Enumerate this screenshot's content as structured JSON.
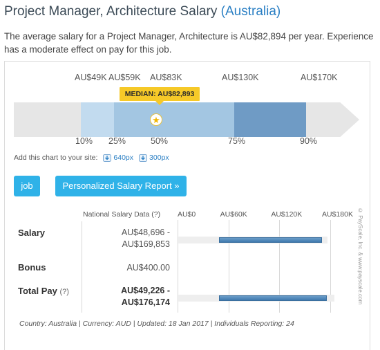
{
  "header": {
    "title_main": "Project Manager, Architecture Salary",
    "title_country": "(Australia)"
  },
  "description": "The average salary for a Project Manager, Architecture is AU$82,894 per year. Experience has a moderate effect on pay for this job.",
  "range_chart": {
    "top_labels": [
      "AU$49K",
      "AU$59K",
      "AU$83K",
      "AU$130K",
      "AU$170K"
    ],
    "bottom_labels": [
      "10%",
      "25%",
      "50%",
      "75%",
      "90%"
    ],
    "median_label": "MEDIAN: AU$82,893",
    "colors": {
      "track": "#e6e6e6",
      "band_10_25": "#c2dbef",
      "band_25_75": "#a3c6e2",
      "band_75_90": "#6f9bc5",
      "median_badge": "#f6c928"
    }
  },
  "add_chart": {
    "label": "Add this chart to your site:",
    "link_640": "640px",
    "link_300": "300px"
  },
  "buttons": {
    "job": "job",
    "report": "Personalized Salary Report »"
  },
  "table": {
    "col_header": "National Salary Data",
    "col_header_q": "(?)",
    "axis_labels": [
      "AU$0",
      "AU$60K",
      "AU$120K",
      "AU$180K"
    ],
    "axis_max": 180000,
    "rows": [
      {
        "label": "Salary",
        "q": "",
        "value_line1": "AU$48,696 -",
        "value_line2": "AU$169,853",
        "bold": false,
        "range": [
          48696,
          169853
        ]
      },
      {
        "label": "Bonus",
        "q": "",
        "value_line1": "AU$400.00",
        "value_line2": "",
        "bold": false,
        "range": null
      },
      {
        "label": "Total Pay",
        "q": "(?)",
        "value_line1": "AU$49,226 -",
        "value_line2": "AU$176,174",
        "bold": true,
        "range": [
          49226,
          176174
        ]
      }
    ],
    "watermark": "© PayScale, Inc. & www.payscale.com"
  },
  "footer": "Country: Australia  |  Currency: AUD  |  Updated: 18 Jan 2017  |  Individuals Reporting: 24"
}
